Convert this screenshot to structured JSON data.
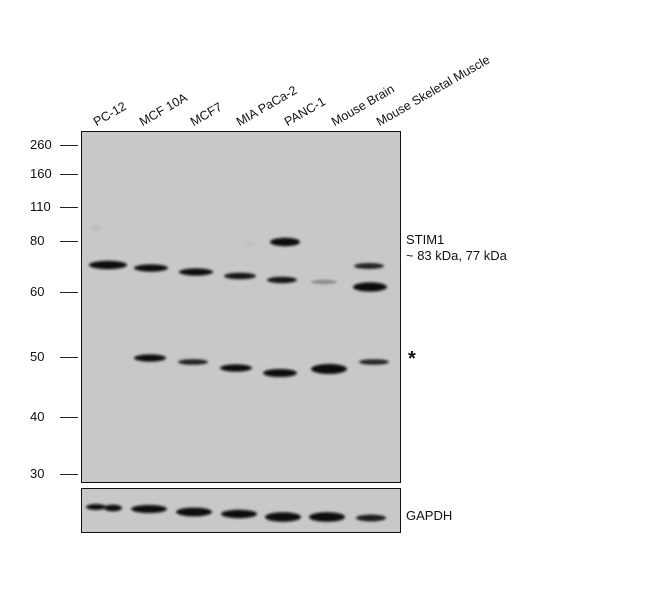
{
  "lanes": [
    "PC-12",
    "MCF 10A",
    "MCF7",
    "MIA PaCa-2",
    "PANC-1",
    "Mouse Brain",
    "Mouse Skeletal Muscle"
  ],
  "mw_markers": [
    "260",
    "160",
    "110",
    "80",
    "60",
    "50",
    "40",
    "30"
  ],
  "target": {
    "name": "STIM1",
    "size": "~ 83 kDa, 77 kDa"
  },
  "nonspecific_marker": "*",
  "loading_control": "GAPDH",
  "colors": {
    "membrane": "#c8c8c8",
    "band": "#0d0d0d",
    "frame": "#111111"
  }
}
